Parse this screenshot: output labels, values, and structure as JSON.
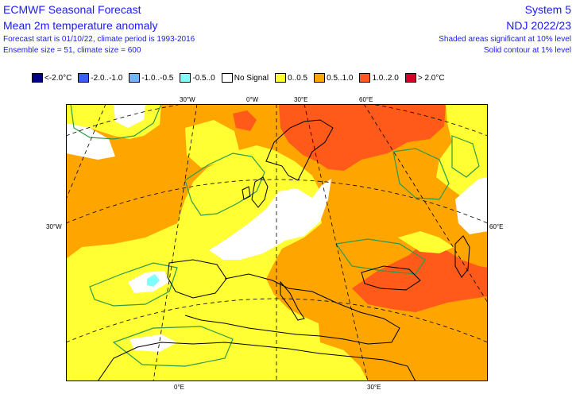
{
  "header": {
    "title_left": "ECMWF Seasonal Forecast",
    "subtitle_left": "Mean 2m temperature anomaly",
    "info_line1": "Forecast start is 01/10/22, climate period is 1993-2016",
    "info_line2": "Ensemble size = 51, climate size = 600",
    "title_right": "System 5",
    "subtitle_right": "NDJ 2022/23",
    "sig_line1": "Shaded areas significant at 10% level",
    "sig_line2": "Solid contour at 1% level"
  },
  "legend": [
    {
      "label": "<-2.0°C",
      "color": "#00008b"
    },
    {
      "label": "-2.0..-1.0",
      "color": "#3a5dff"
    },
    {
      "label": "-1.0..-0.5",
      "color": "#6fb4ff"
    },
    {
      "label": "-0.5..0",
      "color": "#80ffff"
    },
    {
      "label": "No Signal",
      "color": "#ffffff"
    },
    {
      "label": "0..0.5",
      "color": "#ffff33"
    },
    {
      "label": "0.5..1.0",
      "color": "#ffa500"
    },
    {
      "label": "1.0..2.0",
      "color": "#ff5a1a"
    },
    {
      "label": "> 2.0°C",
      "color": "#d4002a"
    }
  ],
  "map": {
    "labels": {
      "lon_30w": "30°W",
      "lon_0w": "0°W",
      "lon_30e_top": "30°E",
      "lon_60e_top": "60°E",
      "lat_30w": "30°W",
      "lat_60e": "60°E",
      "lon_0e_bottom": "0°E",
      "lon_30e_bottom": "30°E"
    },
    "colors": {
      "orange": "#ffa500",
      "red": "#ff5a1a",
      "yellow": "#ffff33",
      "white": "#ffffff",
      "cyan": "#80ffff",
      "coast": "#000000",
      "contour": "#2e9a4a"
    }
  }
}
